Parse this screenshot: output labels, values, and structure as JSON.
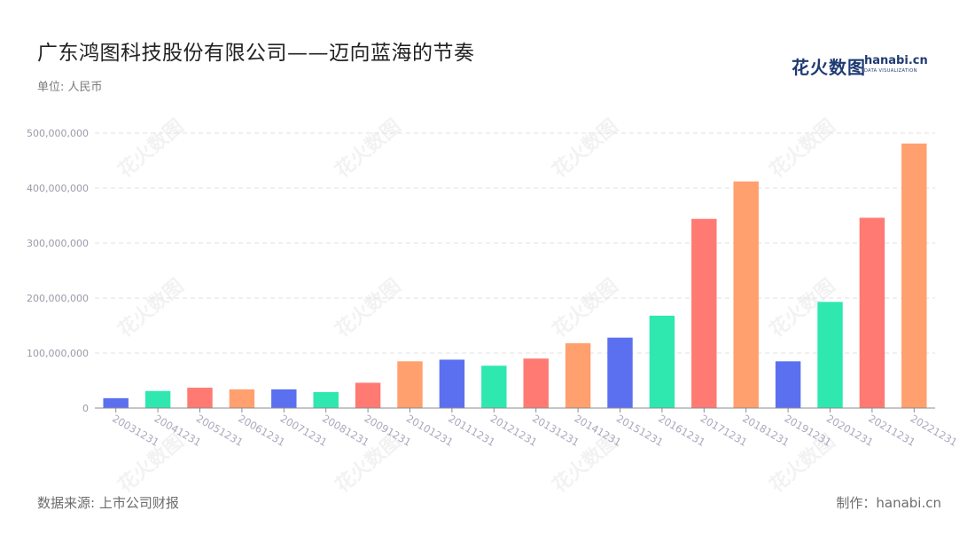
{
  "title": "广东鸿图科技股份有限公司——迈向蓝海的节奏",
  "unit": "单位: 人民币",
  "logo": {
    "cn": "花火数图",
    "en": "hanabi.cn",
    "sub": "DATA VISUALIZATION"
  },
  "watermark": "花火数图",
  "footer": {
    "source": "数据来源: 上市公司财报",
    "credit": "制作：hanabi.cn"
  },
  "colors": [
    "#5b70f0",
    "#2ee8b0",
    "#ff7a72",
    "#ffa06e"
  ],
  "chart_data": {
    "type": "bar",
    "title": "广东鸿图科技股份有限公司——迈向蓝海的节奏",
    "xlabel": "",
    "ylabel": "",
    "ylim": [
      0,
      500000000
    ],
    "yticks": [
      "0",
      "100,000,000",
      "200,000,000",
      "300,000,000",
      "400,000,000",
      "500,000,000"
    ],
    "categories": [
      "20031231",
      "20041231",
      "20051231",
      "20061231",
      "20071231",
      "20081231",
      "20091231",
      "20101231",
      "20111231",
      "20121231",
      "20131231",
      "20141231",
      "20151231",
      "20161231",
      "20171231",
      "20181231",
      "20191231",
      "20201231",
      "20211231",
      "20221231"
    ],
    "values": [
      18000000,
      31000000,
      37000000,
      34000000,
      34000000,
      29000000,
      46000000,
      85000000,
      88000000,
      77000000,
      90000000,
      118000000,
      128000000,
      168000000,
      344000000,
      412000000,
      85000000,
      193000000,
      346000000,
      481000000
    ],
    "bar_colors": [
      "#5b70f0",
      "#2ee8b0",
      "#ff7a72",
      "#ffa06e",
      "#5b70f0",
      "#2ee8b0",
      "#ff7a72",
      "#ffa06e",
      "#5b70f0",
      "#2ee8b0",
      "#ff7a72",
      "#ffa06e",
      "#5b70f0",
      "#2ee8b0",
      "#ff7a72",
      "#ffa06e",
      "#5b70f0",
      "#2ee8b0",
      "#ff7a72",
      "#ffa06e"
    ],
    "grid": true,
    "legend": "none"
  }
}
